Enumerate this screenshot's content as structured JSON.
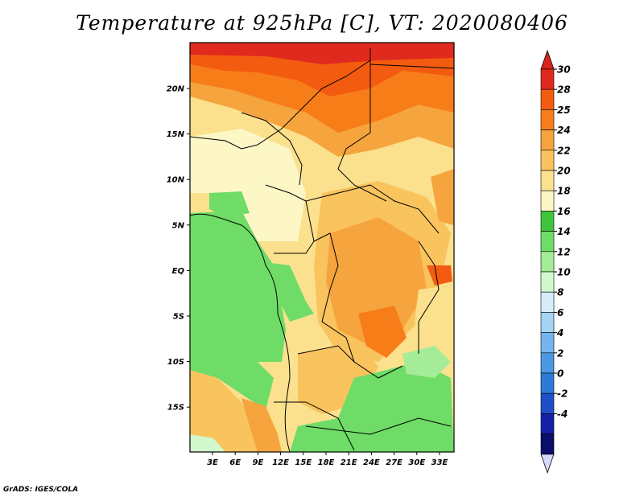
{
  "title": "Temperature at 925hPa [C], VT: 2020080406",
  "credit": "GrADS: IGES/COLA",
  "map": {
    "lat_labels": [
      "20N",
      "15N",
      "10N",
      "5N",
      "EQ",
      "5S",
      "10S",
      "15S"
    ],
    "lon_labels": [
      "3E",
      "6E",
      "9E",
      "12E",
      "15E",
      "18E",
      "21E",
      "24E",
      "27E",
      "30E",
      "33E"
    ],
    "lon_range": [
      0,
      35
    ],
    "lat_range": [
      -20,
      25
    ]
  },
  "colorbar": {
    "labels": [
      "30",
      "28",
      "25",
      "24",
      "22",
      "20",
      "18",
      "16",
      "14",
      "12",
      "10",
      "8",
      "6",
      "4",
      "2",
      "0",
      "-2",
      "-4"
    ],
    "colors": [
      "#e02a1e",
      "#f35c10",
      "#f77d19",
      "#f6a43d",
      "#f9c35d",
      "#fbe08e",
      "#fdf7c6",
      "#3fc53d",
      "#6edc67",
      "#a4ec98",
      "#d2f8cd",
      "#d7ecfb",
      "#a4d3f3",
      "#73b5ec",
      "#4b98e5",
      "#2e7ad8",
      "#1f4fc8",
      "#1420a6",
      "#0c0e6b"
    ],
    "top_color": "#d9231d",
    "bottom_color": "#d8d8ff"
  }
}
